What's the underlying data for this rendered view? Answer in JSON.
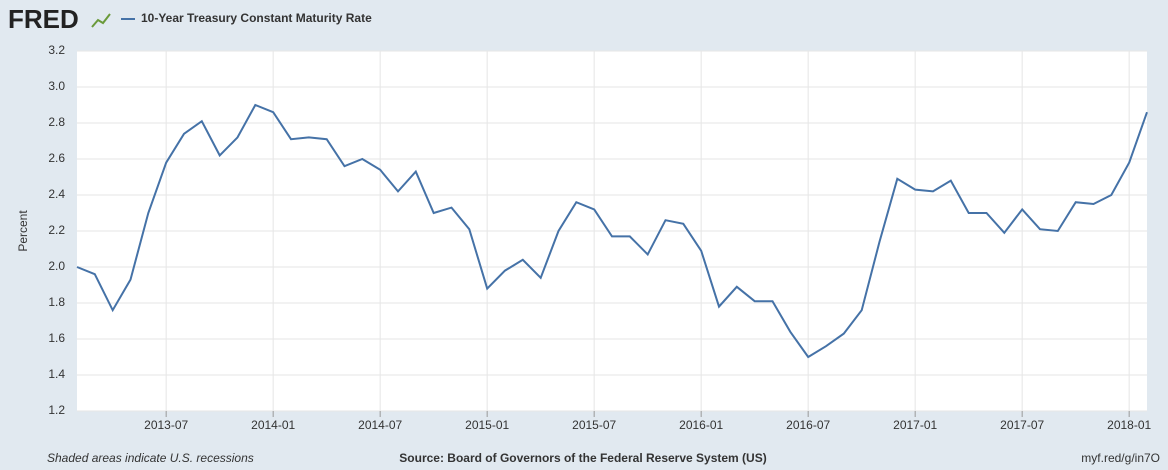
{
  "chart_data": {
    "type": "line",
    "logo": "FRED",
    "ylabel": "Percent",
    "note": "Shaded areas indicate U.S. recessions",
    "source": "Source: Board of Governors of the Federal Reserve System (US)",
    "link": "myf.red/g/in7O",
    "x": [
      "2013-02",
      "2013-03",
      "2013-04",
      "2013-05",
      "2013-06",
      "2013-07",
      "2013-08",
      "2013-09",
      "2013-10",
      "2013-11",
      "2013-12",
      "2014-01",
      "2014-02",
      "2014-03",
      "2014-04",
      "2014-05",
      "2014-06",
      "2014-07",
      "2014-08",
      "2014-09",
      "2014-10",
      "2014-11",
      "2014-12",
      "2015-01",
      "2015-02",
      "2015-03",
      "2015-04",
      "2015-05",
      "2015-06",
      "2015-07",
      "2015-08",
      "2015-09",
      "2015-10",
      "2015-11",
      "2015-12",
      "2016-01",
      "2016-02",
      "2016-03",
      "2016-04",
      "2016-05",
      "2016-06",
      "2016-07",
      "2016-08",
      "2016-09",
      "2016-10",
      "2016-11",
      "2016-12",
      "2017-01",
      "2017-02",
      "2017-03",
      "2017-04",
      "2017-05",
      "2017-06",
      "2017-07",
      "2017-08",
      "2017-09",
      "2017-10",
      "2017-11",
      "2017-12",
      "2018-01",
      "2018-02"
    ],
    "series": [
      {
        "name": "10-Year Treasury Constant Maturity Rate",
        "color": "#4572a7",
        "values": [
          2.0,
          1.96,
          1.76,
          1.93,
          2.3,
          2.58,
          2.74,
          2.81,
          2.62,
          2.72,
          2.9,
          2.86,
          2.71,
          2.72,
          2.71,
          2.56,
          2.6,
          2.54,
          2.42,
          2.53,
          2.3,
          2.33,
          2.21,
          1.88,
          1.98,
          2.04,
          1.94,
          2.2,
          2.36,
          2.32,
          2.17,
          2.17,
          2.07,
          2.26,
          2.24,
          2.09,
          1.78,
          1.89,
          1.81,
          1.81,
          1.64,
          1.5,
          1.56,
          1.63,
          1.76,
          2.14,
          2.49,
          2.43,
          2.42,
          2.48,
          2.3,
          2.3,
          2.19,
          2.32,
          2.21,
          2.2,
          2.36,
          2.35,
          2.4,
          2.58,
          2.86
        ]
      }
    ],
    "xlim": [
      "2013-02",
      "2018-02"
    ],
    "xticks": [
      "2013-07",
      "2014-01",
      "2014-07",
      "2015-01",
      "2015-07",
      "2016-01",
      "2016-07",
      "2017-01",
      "2017-07",
      "2018-01"
    ],
    "ylim": [
      1.2,
      3.2
    ],
    "yticks": [
      {
        "value": 1.2,
        "label": "1.2"
      },
      {
        "value": 1.4,
        "label": "1.4"
      },
      {
        "value": 1.6,
        "label": "1.6"
      },
      {
        "value": 1.8,
        "label": "1.8"
      },
      {
        "value": 2.0,
        "label": "2.0"
      },
      {
        "value": 2.2,
        "label": "2.2"
      },
      {
        "value": 2.4,
        "label": "2.4"
      },
      {
        "value": 2.6,
        "label": "2.6"
      },
      {
        "value": 2.8,
        "label": "2.8"
      },
      {
        "value": 3.0,
        "label": "3.0"
      },
      {
        "value": 3.2,
        "label": "3.2"
      }
    ],
    "grid": true
  }
}
